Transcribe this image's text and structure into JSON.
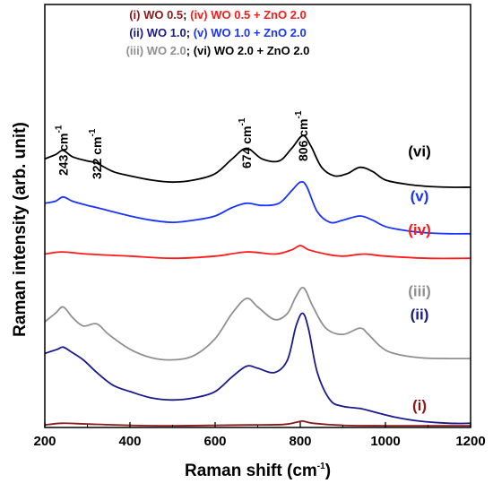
{
  "chart_data": {
    "type": "line",
    "xlabel": "Raman shift (cm",
    "xlabel_sup": "-1",
    "xlabel_tail": ")",
    "ylabel": "Raman intensity (arb. unit)",
    "xlim": [
      200,
      1200
    ],
    "ylim": [
      0,
      1
    ],
    "x_ticks": [
      "200",
      "400",
      "600",
      "800",
      "1000",
      "1200"
    ],
    "y_ticks_visible": false,
    "grid": false,
    "legend": {
      "placement": "top-center",
      "lines": [
        [
          {
            "text": "(i) WO 0.5",
            "color": "#8b1a1a"
          },
          {
            "text": "; ",
            "color": "#000000"
          },
          {
            "text": "(iv) WO 0.5 + ZnO 2.0",
            "color": "#ff1a1a"
          }
        ],
        [
          {
            "text": "(ii) WO 1.0",
            "color": "#1a1a8c"
          },
          {
            "text": "; ",
            "color": "#000000"
          },
          {
            "text": "(v) WO 1.0 + ZnO 2.0",
            "color": "#1a33ff"
          }
        ],
        [
          {
            "text": "(iii) WO 2.0",
            "color": "#909090"
          },
          {
            "text": "; ",
            "color": "#000000"
          },
          {
            "text": "(vi) WO 2.0 + ZnO 2.0",
            "color": "#000000"
          }
        ]
      ]
    },
    "peak_annotations": [
      {
        "text": "243 cm",
        "sup": "-1",
        "x": 243
      },
      {
        "text": "322 cm",
        "sup": "-1",
        "x": 322
      },
      {
        "text": "674 cm",
        "sup": "-1",
        "x": 674
      },
      {
        "text": "806 cm",
        "sup": "-1",
        "x": 806
      }
    ],
    "series": [
      {
        "name": "(i)",
        "color": "#8b1a1a",
        "x": [
          200,
          240,
          300,
          400,
          500,
          600,
          680,
          760,
          790,
          806,
          830,
          900,
          1000,
          1100,
          1200
        ],
        "y": [
          0.006,
          0.01,
          0.008,
          0.005,
          0.004,
          0.005,
          0.006,
          0.007,
          0.012,
          0.015,
          0.01,
          0.005,
          0.004,
          0.004,
          0.004
        ]
      },
      {
        "name": "(ii)",
        "color": "#1a1a8c",
        "x": [
          200,
          215,
          230,
          243,
          260,
          290,
          322,
          360,
          400,
          450,
          500,
          550,
          600,
          640,
          674,
          700,
          740,
          770,
          790,
          806,
          820,
          840,
          870,
          900,
          940,
          980,
          1020,
          1080,
          1150,
          1200
        ],
        "y": [
          0.175,
          0.18,
          0.185,
          0.19,
          0.18,
          0.16,
          0.13,
          0.1,
          0.085,
          0.07,
          0.065,
          0.07,
          0.085,
          0.12,
          0.145,
          0.14,
          0.13,
          0.16,
          0.24,
          0.27,
          0.23,
          0.13,
          0.065,
          0.05,
          0.045,
          0.035,
          0.025,
          0.015,
          0.01,
          0.01
        ]
      },
      {
        "name": "(iii)",
        "color": "#909090",
        "x": [
          200,
          225,
          243,
          265,
          290,
          322,
          350,
          400,
          450,
          500,
          550,
          600,
          640,
          674,
          700,
          740,
          770,
          790,
          808,
          830,
          860,
          900,
          940,
          960,
          990,
          1020,
          1080,
          1150,
          1200
        ],
        "y": [
          0.25,
          0.27,
          0.285,
          0.26,
          0.24,
          0.245,
          0.22,
          0.185,
          0.165,
          0.16,
          0.17,
          0.21,
          0.27,
          0.305,
          0.285,
          0.255,
          0.27,
          0.31,
          0.33,
          0.285,
          0.235,
          0.22,
          0.235,
          0.22,
          0.19,
          0.175,
          0.165,
          0.163,
          0.163
        ]
      },
      {
        "name": "(iv)",
        "color": "#ff1a1a",
        "x": [
          200,
          240,
          300,
          400,
          500,
          600,
          674,
          740,
          780,
          800,
          820,
          860,
          900,
          950,
          1000,
          1100,
          1200
        ],
        "y": [
          0.41,
          0.415,
          0.41,
          0.405,
          0.4,
          0.405,
          0.415,
          0.41,
          0.42,
          0.43,
          0.42,
          0.41,
          0.405,
          0.41,
          0.405,
          0.4,
          0.4
        ]
      },
      {
        "name": "(v)",
        "color": "#1a33ff",
        "x": [
          200,
          225,
          243,
          265,
          300,
          322,
          360,
          400,
          450,
          500,
          550,
          600,
          640,
          674,
          710,
          750,
          780,
          800,
          815,
          840,
          870,
          900,
          940,
          970,
          1000,
          1050,
          1100,
          1150,
          1200
        ],
        "y": [
          0.53,
          0.535,
          0.545,
          0.535,
          0.525,
          0.52,
          0.51,
          0.5,
          0.49,
          0.485,
          0.49,
          0.5,
          0.52,
          0.53,
          0.525,
          0.53,
          0.56,
          0.58,
          0.57,
          0.51,
          0.485,
          0.49,
          0.5,
          0.49,
          0.475,
          0.465,
          0.46,
          0.458,
          0.458
        ]
      },
      {
        "name": "(vi)",
        "color": "#000000",
        "x": [
          200,
          225,
          243,
          265,
          300,
          322,
          360,
          400,
          450,
          500,
          550,
          600,
          640,
          674,
          710,
          750,
          780,
          806,
          825,
          850,
          880,
          910,
          940,
          970,
          1000,
          1050,
          1100,
          1150,
          1200
        ],
        "y": [
          0.635,
          0.645,
          0.655,
          0.64,
          0.63,
          0.625,
          0.605,
          0.595,
          0.585,
          0.58,
          0.585,
          0.6,
          0.635,
          0.66,
          0.635,
          0.63,
          0.66,
          0.69,
          0.665,
          0.615,
          0.595,
          0.6,
          0.615,
          0.605,
          0.585,
          0.575,
          0.57,
          0.568,
          0.568
        ]
      }
    ]
  }
}
